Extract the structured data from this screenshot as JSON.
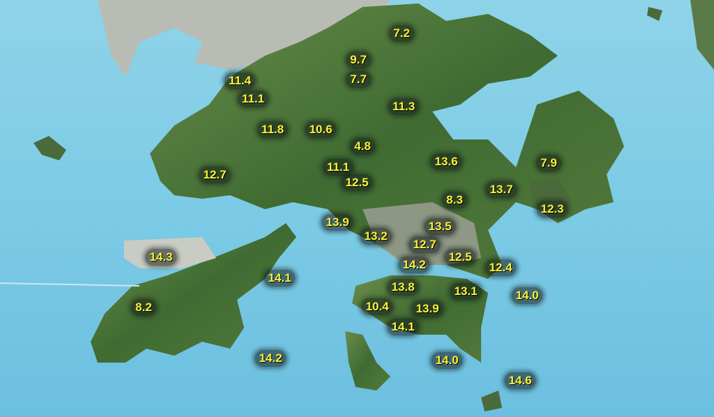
{
  "map": {
    "colors": {
      "sea": "#7ccbe6",
      "land": "#4f7a3a",
      "urban": "#a9a9a0",
      "label_text": "#fbf33a"
    },
    "readings": [
      "7.2",
      "9.7",
      "7.7",
      "11.4",
      "11.1",
      "11.3",
      "11.8",
      "10.6",
      "4.8",
      "13.6",
      "7.9",
      "11.1",
      "12.7",
      "12.5",
      "13.7",
      "8.3",
      "12.3",
      "13.9",
      "13.5",
      "13.2",
      "12.7",
      "14.3",
      "12.5",
      "14.2",
      "12.4",
      "14.1",
      "13.8",
      "13.1",
      "14.0",
      "10.4",
      "8.2",
      "13.9",
      "14.1",
      "14.0",
      "14.2",
      "14.6"
    ]
  }
}
